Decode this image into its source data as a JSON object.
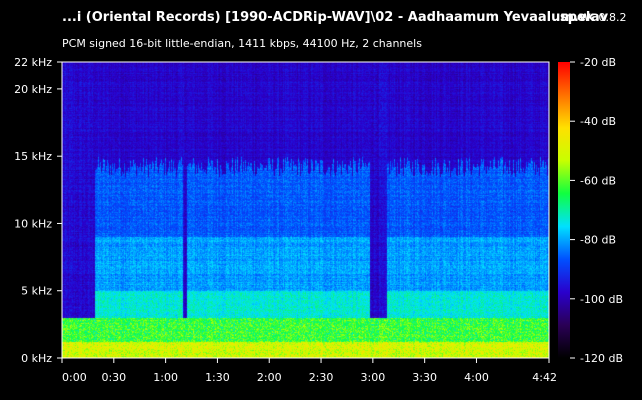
{
  "header": {
    "title": "...i (Oriental Records) [1990-ACDRip-WAV]\\02 - Aadhaamum Yevaalum.wav",
    "brand": "spek",
    "version": "0.8.2",
    "info": "PCM signed 16-bit little-endian, 1411 kbps, 44100 Hz, 2 channels"
  },
  "chart_data": {
    "type": "heatmap",
    "y_axis": {
      "unit": "kHz",
      "range": [
        0,
        22
      ],
      "ticks": [
        {
          "value": 0,
          "label": "0 kHz"
        },
        {
          "value": 5,
          "label": "5 kHz"
        },
        {
          "value": 10,
          "label": "10 kHz"
        },
        {
          "value": 15,
          "label": "15 kHz"
        },
        {
          "value": 20,
          "label": "20 kHz"
        },
        {
          "value": 22,
          "label": "22 kHz"
        }
      ]
    },
    "x_axis": {
      "unit": "s",
      "range": [
        0,
        282
      ],
      "ticks": [
        {
          "value": 0,
          "label": "0:00"
        },
        {
          "value": 30,
          "label": "0:30"
        },
        {
          "value": 60,
          "label": "1:00"
        },
        {
          "value": 90,
          "label": "1:30"
        },
        {
          "value": 120,
          "label": "2:00"
        },
        {
          "value": 150,
          "label": "2:30"
        },
        {
          "value": 180,
          "label": "3:00"
        },
        {
          "value": 210,
          "label": "3:30"
        },
        {
          "value": 240,
          "label": "4:00"
        },
        {
          "value": 282,
          "label": "4:42"
        }
      ]
    },
    "colorbar": {
      "unit": "dB",
      "range": [
        -120,
        -20
      ],
      "ticks": [
        {
          "value": -20,
          "label": "-20 dB"
        },
        {
          "value": -40,
          "label": "-40 dB"
        },
        {
          "value": -60,
          "label": "-60 dB"
        },
        {
          "value": -80,
          "label": "-80 dB"
        },
        {
          "value": -100,
          "label": "-100 dB"
        },
        {
          "value": -120,
          "label": "-120 dB"
        }
      ],
      "colors": [
        "#000000",
        "#2a0055",
        "#2a00cc",
        "#0050ff",
        "#00e0ff",
        "#10ff40",
        "#c8ff00",
        "#ffe000",
        "#ff7000",
        "#ff0000"
      ]
    },
    "gaps_seconds": [
      [
        0,
        19
      ],
      [
        70,
        72
      ],
      [
        178,
        188
      ]
    ]
  }
}
